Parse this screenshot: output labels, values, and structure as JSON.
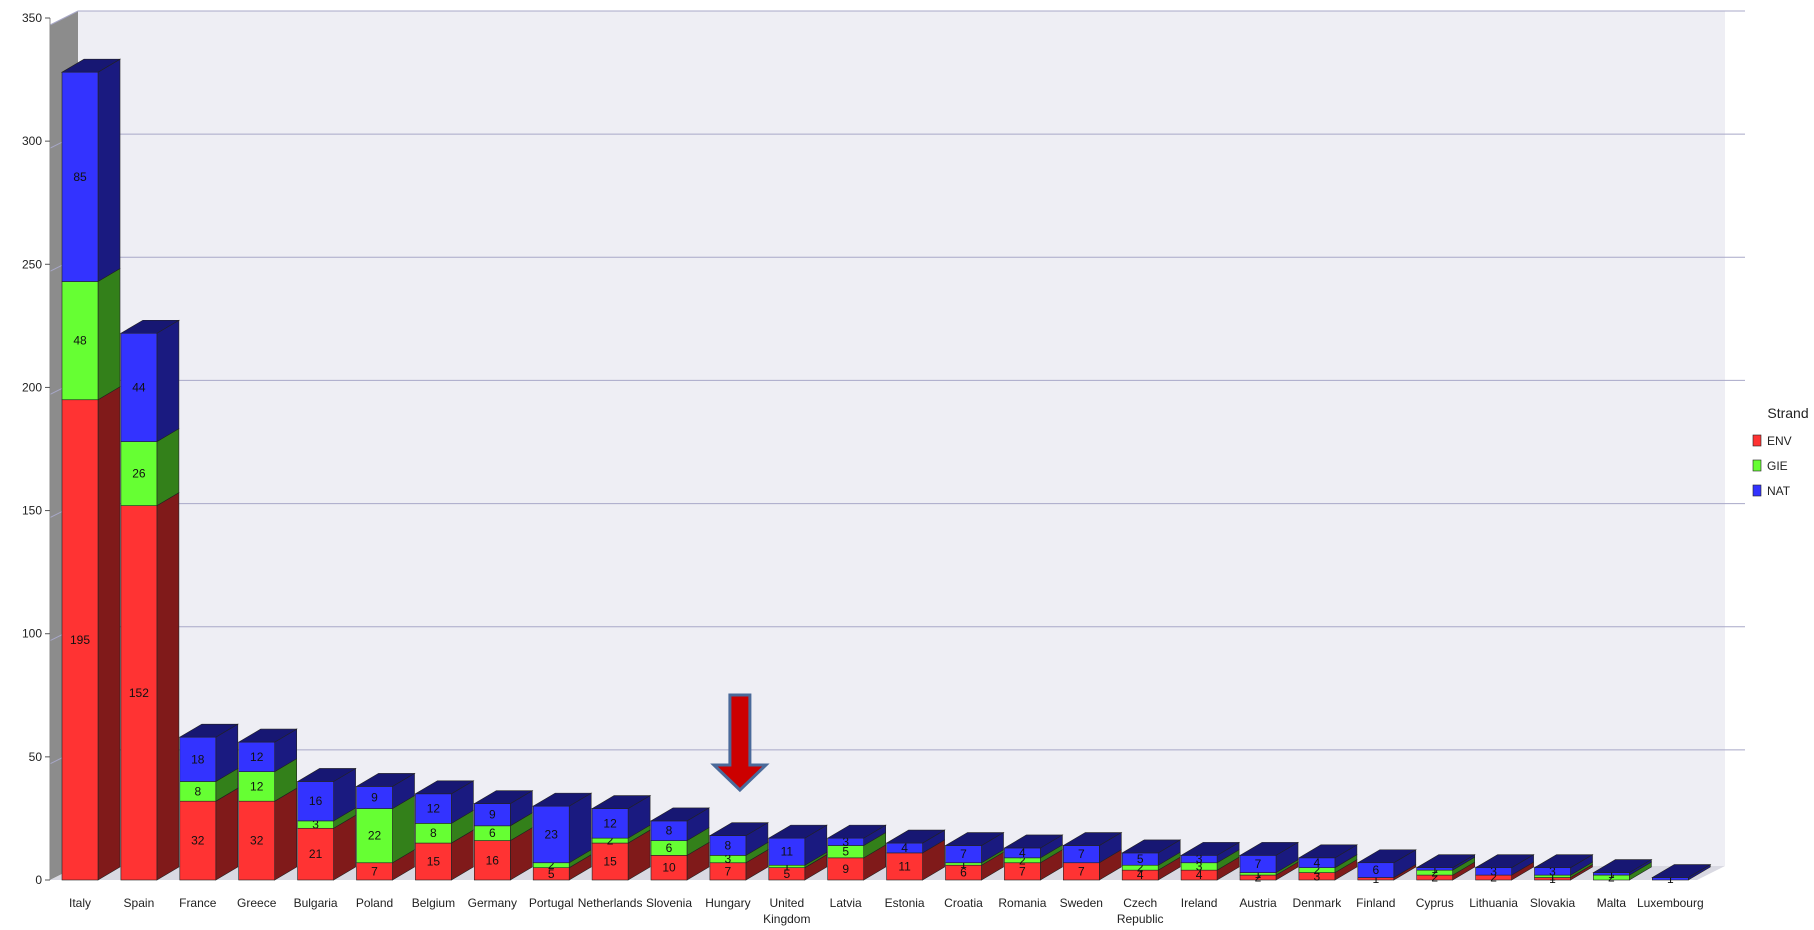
{
  "chart_data": {
    "type": "bar",
    "stacked": true,
    "three_d": true,
    "title": "",
    "xlabel": "",
    "ylabel": "",
    "ylim": [
      0,
      350
    ],
    "yticks": [
      "0",
      "50",
      "100",
      "150",
      "200",
      "250",
      "300",
      "350"
    ],
    "grid": true,
    "legend": {
      "title": "Strand",
      "placement": "right"
    },
    "categories": [
      "Italy",
      "Spain",
      "France",
      "Greece",
      "Bulgaria",
      "Poland",
      "Belgium",
      "Germany",
      "Portugal",
      "Netherlands",
      "Slovenia",
      "Hungary",
      "United Kingdom",
      "Latvia",
      "Estonia",
      "Croatia",
      "Romania",
      "Sweden",
      "Czech Republic",
      "Ireland",
      "Austria",
      "Denmark",
      "Finland",
      "Cyprus",
      "Lithuania",
      "Slovakia",
      "Malta",
      "Luxembourg"
    ],
    "category_lines": [
      [
        "Italy"
      ],
      [
        "Spain"
      ],
      [
        "France"
      ],
      [
        "Greece"
      ],
      [
        "Bulgaria"
      ],
      [
        "Poland"
      ],
      [
        "Belgium"
      ],
      [
        "Germany"
      ],
      [
        "Portugal"
      ],
      [
        "Netherlands"
      ],
      [
        "Slovenia"
      ],
      [
        "Hungary"
      ],
      [
        "United",
        "Kingdom"
      ],
      [
        "Latvia"
      ],
      [
        "Estonia"
      ],
      [
        "Croatia"
      ],
      [
        "Romania"
      ],
      [
        "Sweden"
      ],
      [
        "Czech",
        "Republic"
      ],
      [
        "Ireland"
      ],
      [
        "Austria"
      ],
      [
        "Denmark"
      ],
      [
        "Finland"
      ],
      [
        "Cyprus"
      ],
      [
        "Lithuania"
      ],
      [
        "Slovakia"
      ],
      [
        "Malta"
      ],
      [
        "Luxembourg"
      ]
    ],
    "series": [
      {
        "name": "ENV",
        "color": "#ff3333",
        "values": [
          195,
          152,
          32,
          32,
          21,
          7,
          15,
          16,
          5,
          15,
          10,
          7,
          5,
          9,
          11,
          6,
          7,
          7,
          4,
          4,
          2,
          3,
          1,
          2,
          2,
          1,
          0,
          0
        ]
      },
      {
        "name": "GIE",
        "color": "#66ff33",
        "values": [
          48,
          26,
          8,
          12,
          3,
          22,
          8,
          6,
          2,
          2,
          6,
          3,
          1,
          5,
          0,
          1,
          2,
          0,
          2,
          3,
          1,
          2,
          0,
          2,
          0,
          1,
          2,
          0
        ]
      },
      {
        "name": "NAT",
        "color": "#3333ff",
        "values": [
          85,
          44,
          18,
          12,
          16,
          9,
          12,
          9,
          23,
          12,
          8,
          8,
          11,
          3,
          4,
          7,
          4,
          7,
          5,
          3,
          7,
          4,
          6,
          1,
          3,
          3,
          1,
          1
        ]
      }
    ],
    "annotation": {
      "type": "arrow",
      "pointing_at": "Hungary",
      "color": "#cc0000"
    }
  }
}
